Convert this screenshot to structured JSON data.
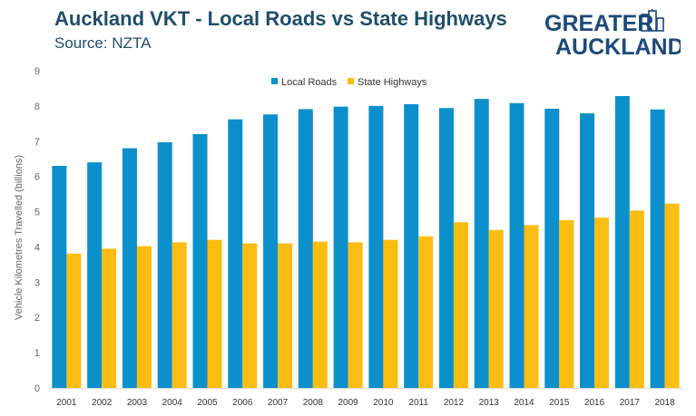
{
  "header": {
    "title": "Auckland VKT - Local Roads vs State Highways",
    "subtitle": "Source: NZTA"
  },
  "logo": {
    "line1": "GREATER",
    "line2": "AUCKLAND",
    "icon": "city-skyline-icon"
  },
  "colors": {
    "local": "#0c90cc",
    "state": "#fbbd12",
    "title": "#1f4e6b",
    "axis": "#666666",
    "grid": "#d9d9d9"
  },
  "chart_data": {
    "type": "bar",
    "title": "Auckland VKT - Local Roads vs State Highways",
    "subtitle": "Source: NZTA",
    "xlabel": "",
    "ylabel": "Vehicle Kilometres Travelled (billions)",
    "ylim": [
      0,
      9
    ],
    "yticks": [
      "0",
      "1",
      "2",
      "3",
      "4",
      "5",
      "6",
      "7",
      "8",
      "9"
    ],
    "grid": false,
    "legend": "top-center",
    "categories": [
      "2001",
      "2002",
      "2003",
      "2004",
      "2005",
      "2006",
      "2007",
      "2008",
      "2009",
      "2010",
      "2011",
      "2012",
      "2013",
      "2014",
      "2015",
      "2016",
      "2017",
      "2018"
    ],
    "series": [
      {
        "name": "Local Roads",
        "values": [
          6.3,
          6.4,
          6.8,
          6.97,
          7.2,
          7.62,
          7.76,
          7.91,
          7.98,
          8.0,
          8.05,
          7.94,
          8.2,
          8.08,
          7.92,
          7.79,
          8.28,
          7.9
        ]
      },
      {
        "name": "State Highways",
        "values": [
          3.81,
          3.95,
          4.02,
          4.13,
          4.2,
          4.1,
          4.1,
          4.15,
          4.13,
          4.2,
          4.3,
          4.7,
          4.48,
          4.62,
          4.76,
          4.83,
          5.03,
          5.23
        ]
      }
    ]
  }
}
